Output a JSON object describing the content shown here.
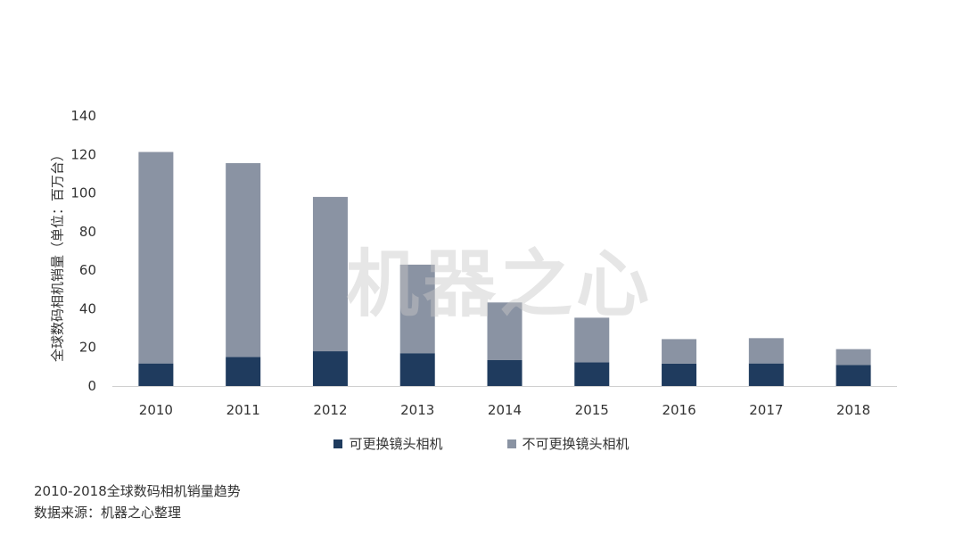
{
  "chart_data": {
    "type": "bar",
    "stacked": true,
    "categories": [
      "2010",
      "2011",
      "2012",
      "2013",
      "2014",
      "2015",
      "2016",
      "2017",
      "2018"
    ],
    "series": [
      {
        "name": "可更换镜头相机",
        "color": "#1f3b5e",
        "values": [
          11.7,
          15.0,
          18.0,
          17.0,
          13.4,
          12.3,
          11.6,
          11.7,
          10.9
        ]
      },
      {
        "name": "不可更换镜头相机",
        "color": "#8a93a3",
        "values": [
          109.6,
          100.5,
          80.0,
          45.9,
          29.9,
          23.1,
          12.7,
          13.1,
          8.2
        ]
      }
    ],
    "ylabel": "全球数码相机销量（单位：百万台）",
    "ylim": [
      0,
      140
    ],
    "yticks": [
      0,
      20,
      40,
      60,
      80,
      100,
      120,
      140
    ],
    "grid": false,
    "legend_position": "bottom"
  },
  "watermark": "机器之心",
  "caption": {
    "title": "2010-2018全球数码相机销量趋势",
    "source": "数据来源：机器之心整理"
  }
}
